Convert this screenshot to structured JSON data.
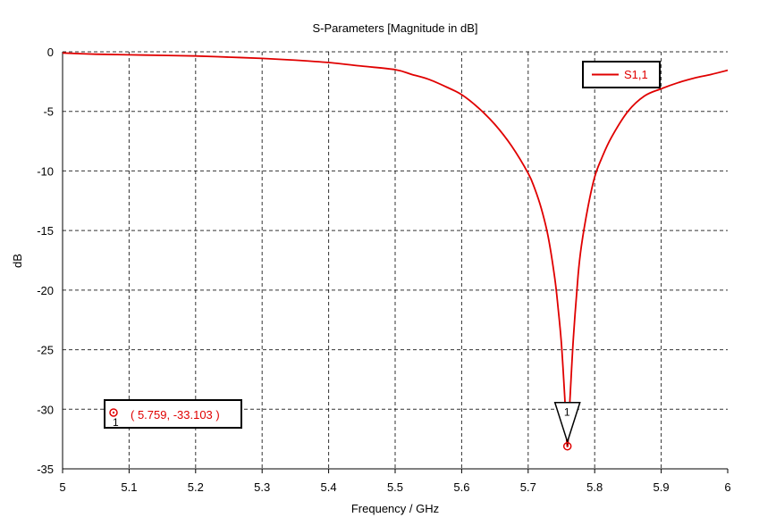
{
  "chart_data": {
    "type": "line",
    "title": "S-Parameters [Magnitude in dB]",
    "xlabel": "Frequency / GHz",
    "ylabel": "dB",
    "xlim": [
      5,
      6
    ],
    "ylim": [
      -35,
      0
    ],
    "xticks": [
      5,
      5.1,
      5.2,
      5.3,
      5.4,
      5.5,
      5.6,
      5.7,
      5.8,
      5.9,
      6
    ],
    "xtick_labels": [
      "5",
      "5.1",
      "5.2",
      "5.3",
      "5.4",
      "5.5",
      "5.6",
      "5.7",
      "5.8",
      "5.9",
      "6"
    ],
    "yticks": [
      0,
      -5,
      -10,
      -15,
      -20,
      -25,
      -30,
      -35
    ],
    "ytick_labels": [
      "0",
      "-5",
      "-10",
      "-15",
      "-20",
      "-25",
      "-30",
      "-35"
    ],
    "grid": true,
    "grid_style": "dashed",
    "legend_position": "top-right",
    "series": [
      {
        "name": "S1,1",
        "color": "#e00000",
        "x": [
          5.0,
          5.05,
          5.1,
          5.15,
          5.2,
          5.25,
          5.3,
          5.35,
          5.4,
          5.45,
          5.5,
          5.525,
          5.55,
          5.575,
          5.6,
          5.625,
          5.65,
          5.675,
          5.7,
          5.71,
          5.72,
          5.73,
          5.74,
          5.745,
          5.75,
          5.755,
          5.759,
          5.763,
          5.768,
          5.775,
          5.78,
          5.79,
          5.8,
          5.81,
          5.825,
          5.85,
          5.875,
          5.9,
          5.925,
          5.95,
          5.975,
          6.0
        ],
        "y": [
          -0.1,
          -0.2,
          -0.25,
          -0.3,
          -0.35,
          -0.45,
          -0.55,
          -0.7,
          -0.9,
          -1.2,
          -1.5,
          -1.9,
          -2.3,
          -2.9,
          -3.6,
          -4.7,
          -6.1,
          -7.9,
          -10.2,
          -11.5,
          -13.2,
          -15.5,
          -19.0,
          -21.5,
          -24.5,
          -29.0,
          -33.103,
          -29.0,
          -24.0,
          -18.8,
          -16.3,
          -13.0,
          -10.5,
          -9.0,
          -7.2,
          -5.0,
          -3.7,
          -3.1,
          -2.6,
          -2.2,
          -1.9,
          -1.55
        ]
      }
    ],
    "markers": [
      {
        "label": "1",
        "x": 5.759,
        "y": -33.103,
        "readout": "( 5.759, -33.103 )"
      }
    ]
  }
}
